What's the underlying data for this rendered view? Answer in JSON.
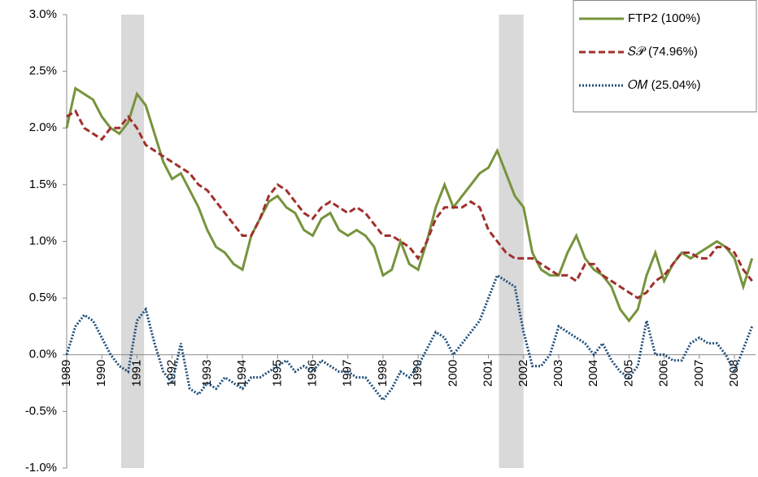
{
  "chart_data": {
    "type": "line",
    "x": [
      1989,
      1989.25,
      1989.5,
      1989.75,
      1990,
      1990.25,
      1990.5,
      1990.75,
      1991,
      1991.25,
      1991.5,
      1991.75,
      1992,
      1992.25,
      1992.5,
      1992.75,
      1993,
      1993.25,
      1993.5,
      1993.75,
      1994,
      1994.25,
      1994.5,
      1994.75,
      1995,
      1995.25,
      1995.5,
      1995.75,
      1996,
      1996.25,
      1996.5,
      1996.75,
      1997,
      1997.25,
      1997.5,
      1997.75,
      1998,
      1998.25,
      1998.5,
      1998.75,
      1999,
      1999.25,
      1999.5,
      1999.75,
      2000,
      2000.25,
      2000.5,
      2000.75,
      2001,
      2001.25,
      2001.5,
      2001.75,
      2002,
      2002.25,
      2002.5,
      2002.75,
      2003,
      2003.25,
      2003.5,
      2003.75,
      2004,
      2004.25,
      2004.5,
      2004.75,
      2005,
      2005.25,
      2005.5,
      2005.75,
      2006,
      2006.25,
      2006.5,
      2006.75,
      2007,
      2007.25,
      2007.5,
      2007.75,
      2008,
      2008.25,
      2008.5
    ],
    "series": [
      {
        "name": "FTP2 (100%)",
        "color": "#77933c",
        "style": "solid",
        "values": [
          2.0,
          2.35,
          2.3,
          2.25,
          2.1,
          2.0,
          1.95,
          2.05,
          2.3,
          2.2,
          1.95,
          1.7,
          1.55,
          1.6,
          1.45,
          1.3,
          1.1,
          0.95,
          0.9,
          0.8,
          0.75,
          1.05,
          1.2,
          1.35,
          1.4,
          1.3,
          1.25,
          1.1,
          1.05,
          1.2,
          1.25,
          1.1,
          1.05,
          1.1,
          1.05,
          0.95,
          0.7,
          0.75,
          1.0,
          0.8,
          0.75,
          1.0,
          1.3,
          1.5,
          1.3,
          1.4,
          1.5,
          1.6,
          1.65,
          1.8,
          1.6,
          1.4,
          1.3,
          0.9,
          0.75,
          0.7,
          0.7,
          0.9,
          1.05,
          0.85,
          0.75,
          0.7,
          0.6,
          0.4,
          0.3,
          0.4,
          0.7,
          0.9,
          0.65,
          0.8,
          0.9,
          0.85,
          0.9,
          0.95,
          1.0,
          0.95,
          0.85,
          0.6,
          0.85
        ]
      },
      {
        "name": "𝑆𝒫 (74.96%)",
        "color": "#a0302c",
        "style": "dashed",
        "values": [
          2.1,
          2.15,
          2.0,
          1.95,
          1.9,
          2.0,
          2.0,
          2.1,
          2.0,
          1.85,
          1.8,
          1.75,
          1.7,
          1.65,
          1.6,
          1.5,
          1.45,
          1.35,
          1.25,
          1.15,
          1.05,
          1.05,
          1.2,
          1.4,
          1.5,
          1.45,
          1.35,
          1.25,
          1.2,
          1.3,
          1.35,
          1.3,
          1.25,
          1.3,
          1.25,
          1.15,
          1.05,
          1.05,
          1.0,
          0.95,
          0.85,
          1.0,
          1.2,
          1.3,
          1.3,
          1.3,
          1.35,
          1.3,
          1.1,
          1.0,
          0.9,
          0.85,
          0.85,
          0.85,
          0.8,
          0.75,
          0.7,
          0.7,
          0.65,
          0.8,
          0.8,
          0.7,
          0.65,
          0.6,
          0.55,
          0.5,
          0.55,
          0.65,
          0.7,
          0.8,
          0.9,
          0.9,
          0.85,
          0.85,
          0.95,
          0.95,
          0.9,
          0.75,
          0.65
        ]
      },
      {
        "name": "𝑂𝑀 (25.04%)",
        "color": "#1f4e79",
        "style": "dotted",
        "values": [
          0.0,
          0.25,
          0.35,
          0.3,
          0.15,
          0.0,
          -0.1,
          -0.15,
          0.3,
          0.4,
          0.1,
          -0.15,
          -0.25,
          0.1,
          -0.3,
          -0.35,
          -0.25,
          -0.3,
          -0.2,
          -0.25,
          -0.3,
          -0.2,
          -0.2,
          -0.15,
          -0.1,
          -0.05,
          -0.15,
          -0.1,
          -0.15,
          -0.05,
          -0.1,
          -0.15,
          -0.15,
          -0.2,
          -0.2,
          -0.3,
          -0.4,
          -0.3,
          -0.15,
          -0.2,
          -0.1,
          0.05,
          0.2,
          0.15,
          0.0,
          0.1,
          0.2,
          0.3,
          0.5,
          0.7,
          0.65,
          0.6,
          0.2,
          -0.1,
          -0.1,
          0.0,
          0.25,
          0.2,
          0.15,
          0.1,
          0.0,
          0.1,
          -0.05,
          -0.15,
          -0.2,
          -0.1,
          0.3,
          0.0,
          0.0,
          -0.05,
          -0.05,
          0.1,
          0.15,
          0.1,
          0.1,
          0.0,
          -0.15,
          0.05,
          0.25
        ]
      }
    ],
    "shaded_periods": [
      [
        1990.55,
        1991.2
      ],
      [
        2001.3,
        2002.0
      ]
    ],
    "xlim": [
      1989,
      2008.6
    ],
    "xticks": [
      1989,
      1990,
      1991,
      1992,
      1993,
      1994,
      1995,
      1996,
      1997,
      1998,
      1999,
      2000,
      2001,
      2002,
      2003,
      2004,
      2005,
      2006,
      2007,
      2008
    ],
    "ylim": [
      -1,
      3
    ],
    "yticks": [
      {
        "value": -1,
        "label": "-1.0%"
      },
      {
        "value": -0.5,
        "label": "-0.5%"
      },
      {
        "value": 0,
        "label": "0.0%"
      },
      {
        "value": 0.5,
        "label": "0.5%"
      },
      {
        "value": 1,
        "label": "1.0%"
      },
      {
        "value": 1.5,
        "label": "1.5%"
      },
      {
        "value": 2,
        "label": "2.0%"
      },
      {
        "value": 2.5,
        "label": "2.5%"
      },
      {
        "value": 3,
        "label": "3.0%"
      }
    ],
    "legend": "top-right",
    "grid": false
  }
}
